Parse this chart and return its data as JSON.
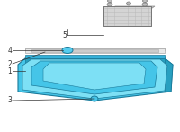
{
  "bg_color": "#ffffff",
  "pan_color": "#45c5e8",
  "pan_edge_color": "#1a7a9a",
  "pan_light": "#7de0f5",
  "pan_dark": "#28a0c0",
  "pan_rim": "#35b0d8",
  "gasket_color": "#e8e8e8",
  "gasket_edge_color": "#aaaaaa",
  "filter_color": "#d8d8d8",
  "filter_edge_color": "#888888",
  "filter_grid": "#bbbbbb",
  "line_color": "#444444",
  "label_color": "#333333",
  "seal_color": "#55ccee",
  "figsize": [
    2.0,
    1.47
  ],
  "dpi": 100
}
